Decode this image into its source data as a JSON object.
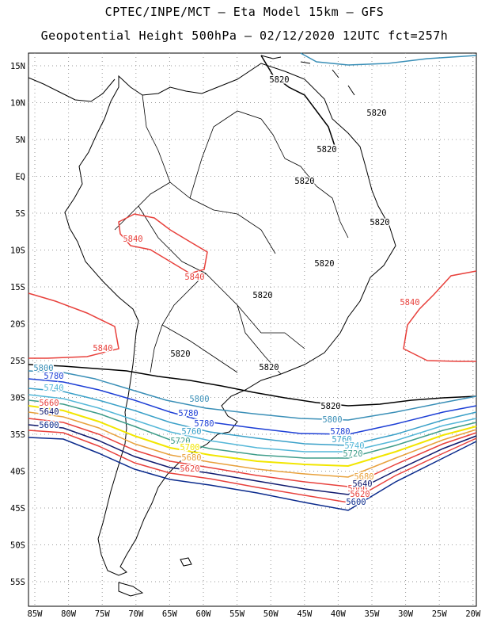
{
  "title_line1": "CPTEC/INPE/MCT –  Eta Model 15km – GFS",
  "title_line2": "Geopotential Height 500hPa – 02/12/2020 12UTC fct=257h",
  "lat_ticks": [
    "15N",
    "10N",
    "5N",
    "EQ",
    "5S",
    "10S",
    "15S",
    "20S",
    "25S",
    "30S",
    "35S",
    "40S",
    "45S",
    "50S",
    "55S"
  ],
  "lon_ticks": [
    "85W",
    "80W",
    "75W",
    "70W",
    "65W",
    "60W",
    "55W",
    "50W",
    "45W",
    "40W",
    "35W",
    "30W",
    "25W",
    "20W"
  ],
  "contour_colors": {
    "5840": "#e8413c",
    "5820": "#000000",
    "5800": "#3a8fb7",
    "5780": "#1d3fd6",
    "5760": "#3aa0c8",
    "5740": "#54b7d8",
    "5720": "#3f9d8a",
    "5700": "#f2e600",
    "5680": "#e8a13c",
    "5660": "#e8413c",
    "5640": "#101a6e",
    "5620": "#e8413c",
    "5600": "#0a2a8c"
  },
  "contour_labels": [
    {
      "text": "5820",
      "color_key": "5820"
    },
    {
      "text": "5820",
      "color_key": "5820"
    },
    {
      "text": "5820",
      "color_key": "5820"
    },
    {
      "text": "5820",
      "color_key": "5820"
    },
    {
      "text": "5820",
      "color_key": "5820"
    },
    {
      "text": "5820",
      "color_key": "5820"
    },
    {
      "text": "5820",
      "color_key": "5820"
    },
    {
      "text": "5820",
      "color_key": "5820"
    },
    {
      "text": "5820",
      "color_key": "5820"
    },
    {
      "text": "5820",
      "color_key": "5820"
    },
    {
      "text": "5840",
      "color_key": "5840"
    },
    {
      "text": "5840",
      "color_key": "5840"
    },
    {
      "text": "5840",
      "color_key": "5840"
    },
    {
      "text": "5840",
      "color_key": "5840"
    },
    {
      "text": "5800",
      "color_key": "5800"
    },
    {
      "text": "5800",
      "color_key": "5800"
    },
    {
      "text": "5800",
      "color_key": "5800"
    },
    {
      "text": "5780",
      "color_key": "5780"
    },
    {
      "text": "5780",
      "color_key": "5780"
    },
    {
      "text": "5780",
      "color_key": "5780"
    },
    {
      "text": "5780",
      "color_key": "5780"
    },
    {
      "text": "5760",
      "color_key": "5760"
    },
    {
      "text": "5760",
      "color_key": "5760"
    },
    {
      "text": "5740",
      "color_key": "5740"
    },
    {
      "text": "5740",
      "color_key": "5740"
    },
    {
      "text": "5720",
      "color_key": "5720"
    },
    {
      "text": "5720",
      "color_key": "5720"
    },
    {
      "text": "5700",
      "color_key": "5700"
    },
    {
      "text": "5680",
      "color_key": "5680"
    },
    {
      "text": "5680",
      "color_key": "5680"
    },
    {
      "text": "5660",
      "color_key": "5660"
    },
    {
      "text": "5660",
      "color_key": "5660"
    },
    {
      "text": "5640",
      "color_key": "5640"
    },
    {
      "text": "5640",
      "color_key": "5640"
    },
    {
      "text": "5620",
      "color_key": "5620"
    },
    {
      "text": "5620",
      "color_key": "5620"
    },
    {
      "text": "5600",
      "color_key": "5600"
    },
    {
      "text": "5600",
      "color_key": "5600"
    }
  ],
  "map_colors": {
    "coast": "#000000",
    "grid": "#9a9a9a",
    "frame": "#000000",
    "background": "#ffffff"
  }
}
